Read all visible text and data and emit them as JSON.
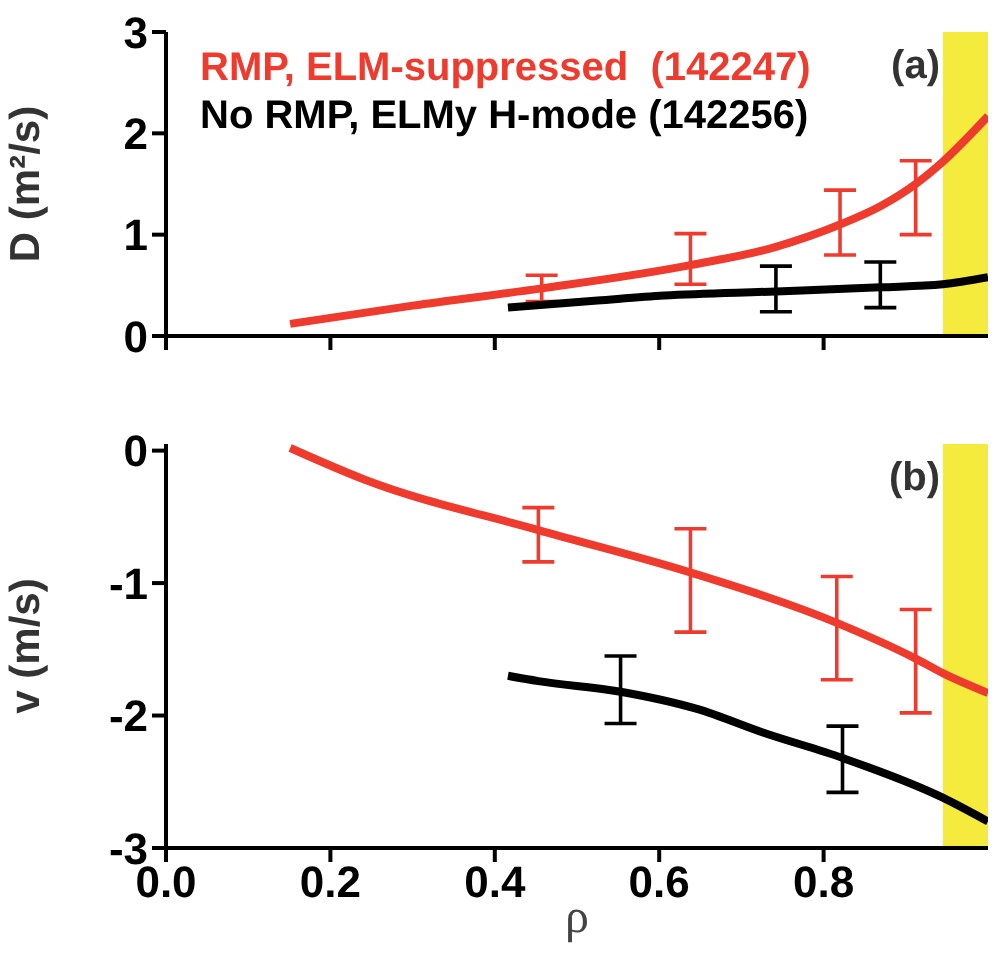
{
  "chart_data": [
    {
      "type": "line",
      "ylabel": "D (m²/s)",
      "xlim": [
        0,
        1
      ],
      "xticks": [
        0,
        0.2,
        0.4,
        0.6,
        0.8
      ],
      "ylim": [
        0,
        3
      ],
      "yticks": [
        0,
        1,
        2,
        3
      ],
      "tick_labels": "y",
      "legend": "top left",
      "annotations": [
        "(a)"
      ],
      "bands": [
        {
          "axis": "x",
          "from": 0.945,
          "to": 1,
          "color": "#f5eb3c"
        }
      ],
      "series": [
        {
          "name": "RMP, ELM-suppressed  (142247)",
          "color": "#ee3b2e",
          "x": [
            0.151,
            0.3,
            0.457,
            0.638,
            0.742,
            0.82,
            0.869,
            0.912,
            0.945,
            1.0
          ],
          "values": [
            0.12,
            0.3,
            0.47,
            0.7,
            0.88,
            1.1,
            1.28,
            1.5,
            1.72,
            2.17
          ],
          "errors": [
            null,
            null,
            [
              0.34,
              0.6
            ],
            [
              0.51,
              1.01
            ],
            null,
            [
              0.8,
              1.44
            ],
            null,
            [
              1.0,
              1.73
            ],
            null,
            null
          ]
        },
        {
          "name": "No RMP, ELMy H-mode (142256)",
          "color": "#000000",
          "x": [
            0.416,
            0.525,
            0.606,
            0.742,
            0.869,
            0.945,
            1.0
          ],
          "values": [
            0.28,
            0.35,
            0.4,
            0.44,
            0.48,
            0.51,
            0.58
          ],
          "errors": [
            null,
            null,
            null,
            [
              0.24,
              0.69
            ],
            [
              0.28,
              0.73
            ],
            null,
            null
          ]
        }
      ]
    },
    {
      "type": "line",
      "ylabel": "v (m/s)",
      "xlabel": "ρ",
      "xlim": [
        0,
        1
      ],
      "xticks": [
        {
          "value": 0,
          "label": "0.0"
        },
        {
          "value": 0.2,
          "label": "0.2"
        },
        {
          "value": 0.4,
          "label": "0.4"
        },
        {
          "value": 0.6,
          "label": "0.6"
        },
        {
          "value": 0.8,
          "label": "0.8"
        }
      ],
      "ylim": [
        -3,
        0.05
      ],
      "yticks": [
        -3,
        -2,
        -1,
        0
      ],
      "annotations": [
        "(b)"
      ],
      "bands": [
        {
          "axis": "x",
          "from": 0.945,
          "to": 1,
          "color": "#f5eb3c"
        }
      ],
      "series": [
        {
          "color": "#ee3b2e",
          "x": [
            0.151,
            0.242,
            0.453,
            0.638,
            0.816,
            0.912,
            0.945,
            1.0
          ],
          "values": [
            0.02,
            -0.22,
            -0.6,
            -0.92,
            -1.3,
            -1.57,
            -1.68,
            -1.83
          ],
          "errors": [
            null,
            null,
            [
              -0.84,
              -0.43
            ],
            [
              -1.37,
              -0.59
            ],
            [
              -1.73,
              -0.95
            ],
            [
              -1.98,
              -1.2
            ],
            null,
            null
          ]
        },
        {
          "color": "#000000",
          "x": [
            0.416,
            0.453,
            0.553,
            0.646,
            0.727,
            0.823,
            0.945,
            1.0
          ],
          "values": [
            -1.7,
            -1.74,
            -1.82,
            -1.95,
            -2.13,
            -2.32,
            -2.62,
            -2.8
          ],
          "errors": [
            null,
            null,
            [
              -2.06,
              -1.55
            ],
            null,
            null,
            [
              -2.58,
              -2.08
            ],
            null,
            null
          ]
        }
      ]
    }
  ]
}
